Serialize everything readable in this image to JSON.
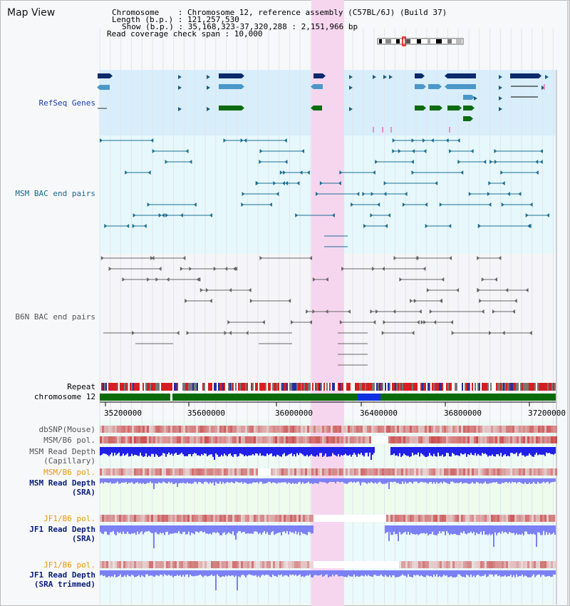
{
  "title": "Map View",
  "header": {
    "line1": "Chromosome    : Chromosome 12, reference assembly (C57BL/6J) (Build 37)",
    "line2": "Length (b.p.) : 121,257,530",
    "line3": "Show (b.p.) : 35,168,323-37,320,288 : 2,151,966 bp",
    "line4": "Read coverage check span : 10,000"
  },
  "tracks": {
    "refseq": "RefSeq Genes",
    "msm_bac": "MSM BAC end pairs",
    "b6n_bac": "B6N BAC end pairs",
    "repeat": "Repeat",
    "chromosome": "chromosome 12",
    "dbsnp": "dbSNP(Mouse)",
    "msm_b6_pol": "MSM/B6 pol.",
    "msm_read_depth_cap": "MSM Read Depth",
    "capillary": "(Capillary)",
    "msm_b6_pol2": "MSM/B6 pol.",
    "msm_read_depth_sra": "MSM Read Depth",
    "sra": "(SRA)",
    "jf1_b6_pol": "JF1/B6 pol.",
    "jf1_read_depth": "JF1 Read Depth",
    "sra2": "(SRA)",
    "jf1_b6_pol2": "JF1/B6 pol.",
    "jf1_read_depth2": "JF1 Read Depth",
    "sra_trimmed": "(SRA trimmed)"
  },
  "axis": {
    "ticks": [
      "35200000",
      "35600000",
      "36000000",
      "36400000",
      "36800000",
      "37200000"
    ]
  },
  "colors": {
    "highlight": "#f6d6ef",
    "refseq_bg": "#d8eefb",
    "bac_bg": "#e6f8fb",
    "gene_dark": "#0c2a6a",
    "gene_light": "#4b98c8",
    "gene_green": "#0f6b12",
    "bac_line": "#1c6f93",
    "b6n_line": "#666666",
    "chrom_green": "#0b6b0b",
    "depth_dark": "#2020e8",
    "depth_light": "#7b80f5"
  }
}
